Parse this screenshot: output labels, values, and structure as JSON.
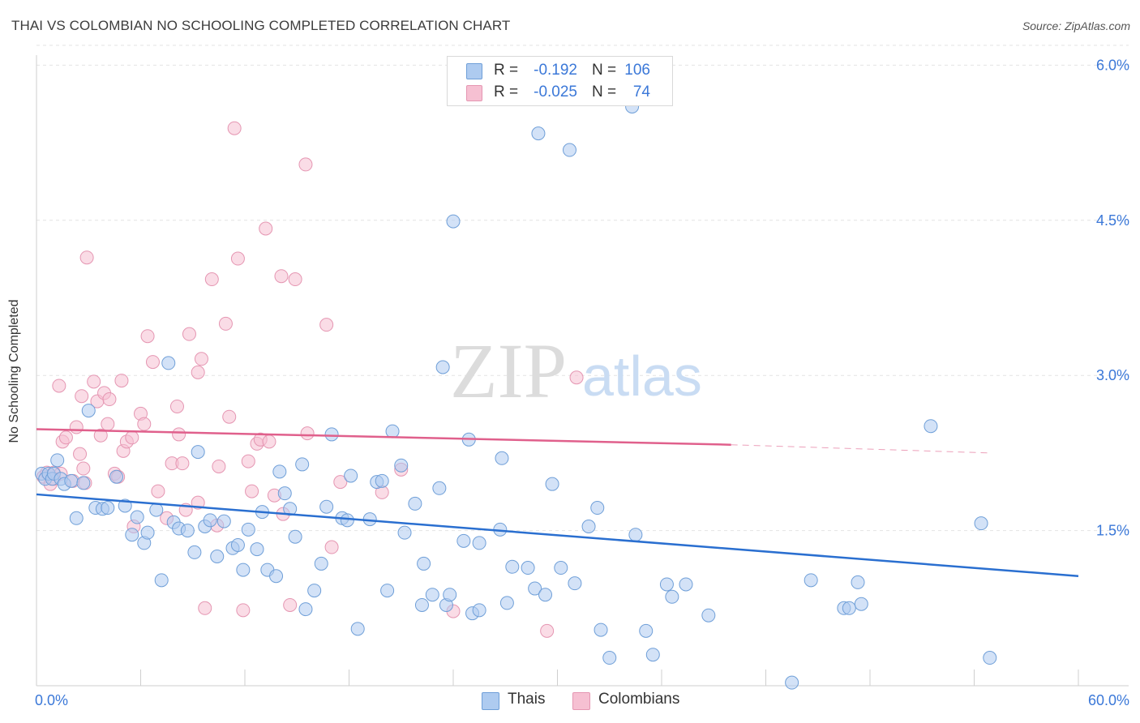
{
  "header": {
    "title": "THAI VS COLOMBIAN NO SCHOOLING COMPLETED CORRELATION CHART",
    "source": "Source: ZipAtlas.com"
  },
  "watermark": {
    "zip": "ZIP",
    "atlas": "atlas"
  },
  "legend": {
    "rows": [
      {
        "r_label": "R =",
        "r_value": "-0.192",
        "n_label": "N =",
        "n_value": "106"
      },
      {
        "r_label": "R =",
        "r_value": "-0.025",
        "n_label": "N =",
        "n_value": "74"
      }
    ]
  },
  "bottom_legend": {
    "thais": "Thais",
    "colombians": "Colombians"
  },
  "colors": {
    "thais_fill": "#aecbf0",
    "thais_stroke": "#6f9fd8",
    "thais_line": "#2a6fd0",
    "colombians_fill": "#f6c0d2",
    "colombians_stroke": "#e596b2",
    "colombians_line": "#e0608c",
    "tick_label": "#3b78d8"
  },
  "chart_data": {
    "type": "scatter",
    "title": "THAI VS COLOMBIAN NO SCHOOLING COMPLETED CORRELATION CHART",
    "xlabel": "",
    "ylabel": "No Schooling Completed",
    "xlim": [
      0,
      60
    ],
    "ylim": [
      0,
      6.2
    ],
    "x_tick_labels": [
      "0.0%",
      "60.0%"
    ],
    "y_ticks": [
      1.5,
      3.0,
      4.5,
      6.0
    ],
    "y_tick_labels": [
      "1.5%",
      "3.0%",
      "4.5%",
      "6.0%"
    ],
    "grid": true,
    "legend_position": "top-center",
    "series": [
      {
        "name": "Thais",
        "r": -0.192,
        "n": 106,
        "trend": {
          "x": [
            0,
            60
          ],
          "y": [
            1.85,
            1.06
          ]
        },
        "points": [
          [
            0.3,
            2.05
          ],
          [
            0.5,
            2.0
          ],
          [
            0.7,
            2.05
          ],
          [
            0.9,
            2.0
          ],
          [
            1.0,
            2.05
          ],
          [
            1.2,
            2.18
          ],
          [
            1.4,
            2.0
          ],
          [
            1.6,
            1.95
          ],
          [
            2.0,
            1.98
          ],
          [
            2.3,
            1.62
          ],
          [
            2.7,
            1.96
          ],
          [
            3.0,
            2.66
          ],
          [
            3.4,
            1.72
          ],
          [
            3.8,
            1.71
          ],
          [
            4.1,
            1.72
          ],
          [
            4.6,
            2.02
          ],
          [
            5.1,
            1.74
          ],
          [
            5.5,
            1.46
          ],
          [
            5.8,
            1.63
          ],
          [
            6.2,
            1.38
          ],
          [
            6.4,
            1.48
          ],
          [
            6.9,
            1.7
          ],
          [
            7.2,
            1.02
          ],
          [
            7.6,
            3.12
          ],
          [
            7.9,
            1.58
          ],
          [
            8.2,
            1.52
          ],
          [
            8.7,
            1.5
          ],
          [
            9.1,
            1.29
          ],
          [
            9.3,
            2.26
          ],
          [
            9.7,
            1.54
          ],
          [
            10.0,
            1.6
          ],
          [
            10.4,
            1.25
          ],
          [
            10.8,
            1.59
          ],
          [
            11.3,
            1.33
          ],
          [
            11.6,
            1.36
          ],
          [
            11.9,
            1.12
          ],
          [
            12.2,
            1.51
          ],
          [
            12.7,
            1.32
          ],
          [
            13.0,
            1.68
          ],
          [
            13.3,
            1.12
          ],
          [
            13.8,
            1.06
          ],
          [
            14.0,
            2.07
          ],
          [
            14.3,
            1.86
          ],
          [
            14.6,
            1.71
          ],
          [
            14.9,
            1.44
          ],
          [
            15.3,
            2.14
          ],
          [
            15.5,
            0.74
          ],
          [
            16.0,
            0.92
          ],
          [
            16.4,
            1.18
          ],
          [
            16.7,
            1.73
          ],
          [
            17.0,
            2.43
          ],
          [
            17.6,
            1.62
          ],
          [
            17.9,
            1.6
          ],
          [
            18.1,
            2.03
          ],
          [
            18.5,
            0.55
          ],
          [
            19.2,
            1.61
          ],
          [
            19.6,
            1.97
          ],
          [
            19.9,
            1.98
          ],
          [
            20.2,
            0.92
          ],
          [
            20.5,
            2.46
          ],
          [
            21.0,
            2.13
          ],
          [
            21.2,
            1.48
          ],
          [
            21.8,
            1.76
          ],
          [
            22.2,
            0.78
          ],
          [
            22.3,
            1.18
          ],
          [
            22.8,
            0.88
          ],
          [
            23.2,
            1.91
          ],
          [
            23.4,
            3.08
          ],
          [
            23.6,
            0.78
          ],
          [
            23.8,
            0.88
          ],
          [
            24.0,
            4.49
          ],
          [
            24.6,
            1.4
          ],
          [
            24.9,
            2.38
          ],
          [
            25.1,
            0.7
          ],
          [
            25.5,
            1.38
          ],
          [
            25.5,
            0.73
          ],
          [
            26.7,
            1.51
          ],
          [
            26.8,
            2.2
          ],
          [
            27.1,
            0.8
          ],
          [
            27.4,
            1.15
          ],
          [
            28.3,
            1.14
          ],
          [
            28.7,
            0.94
          ],
          [
            28.9,
            5.34
          ],
          [
            29.3,
            0.88
          ],
          [
            29.7,
            1.95
          ],
          [
            30.2,
            1.14
          ],
          [
            30.7,
            5.18
          ],
          [
            31.0,
            0.99
          ],
          [
            31.8,
            1.54
          ],
          [
            32.3,
            1.72
          ],
          [
            32.5,
            0.54
          ],
          [
            33.0,
            0.27
          ],
          [
            34.3,
            5.6
          ],
          [
            34.5,
            1.46
          ],
          [
            35.1,
            0.53
          ],
          [
            35.5,
            0.3
          ],
          [
            36.3,
            0.98
          ],
          [
            36.6,
            0.86
          ],
          [
            37.4,
            0.98
          ],
          [
            38.7,
            0.68
          ],
          [
            43.5,
            0.03
          ],
          [
            44.6,
            1.02
          ],
          [
            46.5,
            0.75
          ],
          [
            46.8,
            0.75
          ],
          [
            47.3,
            1.0
          ],
          [
            47.5,
            0.79
          ],
          [
            51.5,
            2.51
          ],
          [
            54.4,
            1.57
          ],
          [
            54.9,
            0.27
          ]
        ]
      },
      {
        "name": "Colombians",
        "r": -0.025,
        "n": 74,
        "trend": {
          "x": [
            0,
            40,
            55
          ],
          "y": [
            2.48,
            2.33,
            2.25
          ]
        },
        "points": [
          [
            0.4,
            2.02
          ],
          [
            0.6,
            2.06
          ],
          [
            0.8,
            1.95
          ],
          [
            1.0,
            2.06
          ],
          [
            1.3,
            2.9
          ],
          [
            1.4,
            2.05
          ],
          [
            1.5,
            2.36
          ],
          [
            1.7,
            2.4
          ],
          [
            2.1,
            1.98
          ],
          [
            2.3,
            2.5
          ],
          [
            2.5,
            2.24
          ],
          [
            2.6,
            2.8
          ],
          [
            2.7,
            2.1
          ],
          [
            2.9,
            4.14
          ],
          [
            3.3,
            2.94
          ],
          [
            3.5,
            2.75
          ],
          [
            3.7,
            2.42
          ],
          [
            3.9,
            2.83
          ],
          [
            4.1,
            2.53
          ],
          [
            4.2,
            2.77
          ],
          [
            4.5,
            2.05
          ],
          [
            4.7,
            2.02
          ],
          [
            4.9,
            2.95
          ],
          [
            5.0,
            2.27
          ],
          [
            5.2,
            2.36
          ],
          [
            5.5,
            2.4
          ],
          [
            5.6,
            1.54
          ],
          [
            6.0,
            2.63
          ],
          [
            6.2,
            2.53
          ],
          [
            6.4,
            3.38
          ],
          [
            6.7,
            3.13
          ],
          [
            7.0,
            1.88
          ],
          [
            7.5,
            1.62
          ],
          [
            7.8,
            2.15
          ],
          [
            8.1,
            2.7
          ],
          [
            8.2,
            2.43
          ],
          [
            8.4,
            2.15
          ],
          [
            8.6,
            1.7
          ],
          [
            8.8,
            3.4
          ],
          [
            9.3,
            3.03
          ],
          [
            9.3,
            1.77
          ],
          [
            9.5,
            3.16
          ],
          [
            9.7,
            0.75
          ],
          [
            10.1,
            3.93
          ],
          [
            10.4,
            1.55
          ],
          [
            10.5,
            2.12
          ],
          [
            10.9,
            3.5
          ],
          [
            11.1,
            2.6
          ],
          [
            11.4,
            5.39
          ],
          [
            11.6,
            4.13
          ],
          [
            11.9,
            0.73
          ],
          [
            12.2,
            2.17
          ],
          [
            12.4,
            1.88
          ],
          [
            12.7,
            2.34
          ],
          [
            12.9,
            2.38
          ],
          [
            13.2,
            4.42
          ],
          [
            13.4,
            2.36
          ],
          [
            13.7,
            1.84
          ],
          [
            14.1,
            3.96
          ],
          [
            14.2,
            1.66
          ],
          [
            14.6,
            0.78
          ],
          [
            14.9,
            3.93
          ],
          [
            15.5,
            5.04
          ],
          [
            15.6,
            2.44
          ],
          [
            16.7,
            3.49
          ],
          [
            17.0,
            1.34
          ],
          [
            17.5,
            1.97
          ],
          [
            19.9,
            1.87
          ],
          [
            21.0,
            2.09
          ],
          [
            24.0,
            0.72
          ],
          [
            29.4,
            0.53
          ],
          [
            31.1,
            2.98
          ],
          [
            1.0,
            2.0
          ],
          [
            2.8,
            1.96
          ]
        ]
      }
    ]
  }
}
